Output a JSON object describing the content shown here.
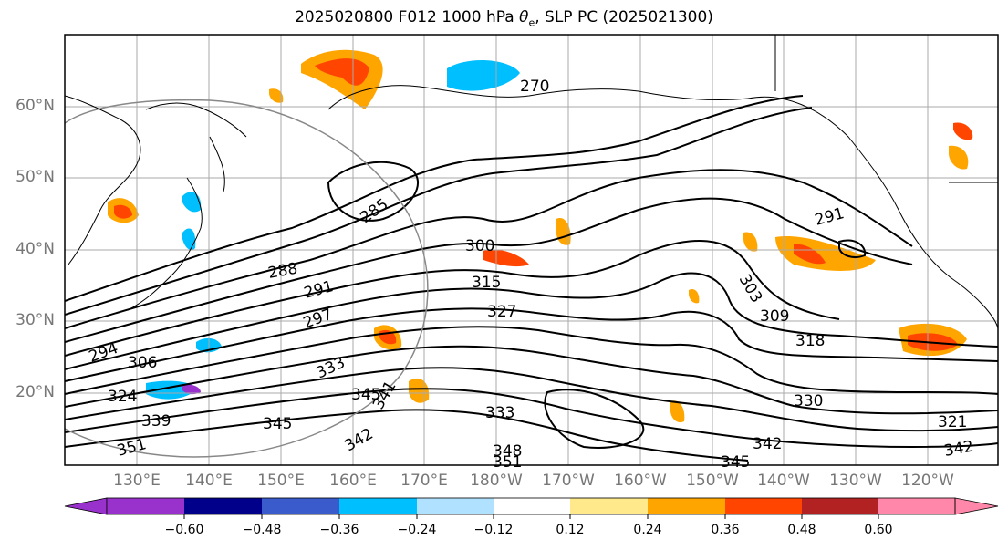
{
  "title_pre": "2025020800 F012 1000 hPa ",
  "title_theta": "θ",
  "title_sub": "e",
  "title_post": ", SLP PC (2025021300)",
  "lat_labels": [
    "60°N",
    "50°N",
    "40°N",
    "30°N",
    "20°N"
  ],
  "lon_labels": [
    "130°E",
    "140°E",
    "150°E",
    "160°E",
    "170°E",
    "180°W",
    "170°W",
    "160°W",
    "150°W",
    "140°W",
    "130°W",
    "120°W"
  ],
  "contour_labels": [
    "270",
    "285",
    "288",
    "291",
    "291",
    "294",
    "297",
    "300",
    "303",
    "306",
    "309",
    "315",
    "318",
    "321",
    "324",
    "327",
    "330",
    "333",
    "333",
    "339",
    "341",
    "342",
    "342",
    "342",
    "345",
    "345",
    "345",
    "348",
    "351",
    "351"
  ],
  "colorbar": {
    "ticks": [
      "−0.60",
      "−0.48",
      "−0.36",
      "−0.24",
      "−0.12",
      "0.12",
      "0.24",
      "0.36",
      "0.48",
      "0.60"
    ],
    "colors": [
      "#9932cc",
      "#00008b",
      "#3a5bcc",
      "#00bfff",
      "#b0e2ff",
      "#ffffff",
      "#ffe98a",
      "#ffa500",
      "#ff4500",
      "#b22222",
      "#ff88aa"
    ]
  }
}
